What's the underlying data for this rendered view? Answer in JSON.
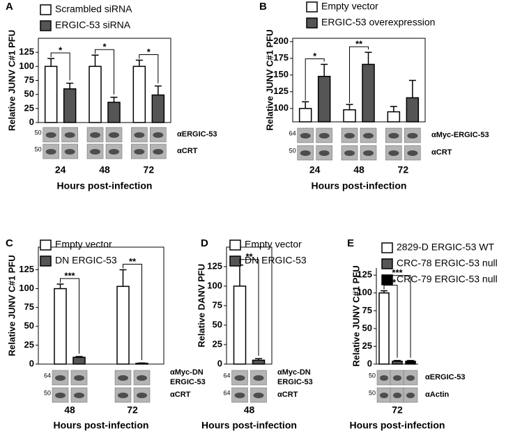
{
  "chart_data": [
    {
      "type": "bar",
      "panel": "A",
      "ylabel": "Relative JUNV C#1 PFU",
      "xlabel": "Hours post-infection",
      "categories": [
        "24",
        "48",
        "72"
      ],
      "series": [
        {
          "name": "Scrambled siRNA",
          "color": "#ffffff",
          "values": [
            100,
            100,
            100
          ],
          "errors": [
            14,
            20,
            11
          ]
        },
        {
          "name": "ERGIC-53 siRNA",
          "color": "#555555",
          "values": [
            60,
            36,
            49
          ],
          "errors": [
            10,
            9,
            16
          ]
        }
      ],
      "ylim": [
        0,
        150
      ],
      "yticks": [
        0,
        25,
        50,
        75,
        100,
        125
      ],
      "frame": true,
      "significance": [
        {
          "category": "24",
          "compare": "ERGIC-53 siRNA",
          "label": "*"
        },
        {
          "category": "48",
          "compare": "ERGIC-53 siRNA",
          "label": "*"
        },
        {
          "category": "72",
          "compare": "ERGIC-53 siRNA",
          "label": "*"
        }
      ],
      "blots": [
        {
          "label": [
            "αERGIC-53"
          ],
          "marker": "50"
        },
        {
          "label": [
            "αCRT"
          ],
          "marker": "50"
        }
      ]
    },
    {
      "type": "bar",
      "panel": "B",
      "ylabel": "Relative JUNV C#1 PFU",
      "xlabel": "Hours post-infection",
      "categories": [
        "24",
        "48",
        "72"
      ],
      "series": [
        {
          "name": "Empty  vector",
          "color": "#ffffff",
          "values": [
            100,
            98,
            95
          ],
          "errors": [
            10,
            8,
            8
          ]
        },
        {
          "name": "ERGIC-53 overexpression",
          "color": "#555555",
          "values": [
            148,
            166,
            116
          ],
          "errors": [
            18,
            18,
            26
          ]
        }
      ],
      "ylim": [
        80,
        205
      ],
      "yticks": [
        100,
        125,
        150,
        175,
        200
      ],
      "frame": true,
      "significance": [
        {
          "category": "24",
          "compare": "ERGIC-53 overexpression",
          "label": "*"
        },
        {
          "category": "48",
          "compare": "ERGIC-53 overexpression",
          "label": "**"
        }
      ],
      "blots": [
        {
          "label": [
            "αMyc-ERGIC-53"
          ],
          "marker": "64"
        },
        {
          "label": [
            "αCRT"
          ],
          "marker": "50"
        }
      ]
    },
    {
      "type": "bar",
      "panel": "C",
      "ylabel": "Relative JUNV C#1 PFU",
      "xlabel": "Hours post-infection",
      "categories": [
        "48",
        "72"
      ],
      "series": [
        {
          "name": "Empty  vector",
          "color": "#ffffff",
          "values": [
            100,
            103
          ],
          "errors": [
            6,
            22
          ]
        },
        {
          "name": "DN ERGIC-53",
          "color": "#555555",
          "values": [
            9,
            1
          ],
          "errors": [
            1,
            0.5
          ]
        }
      ],
      "ylim": [
        0,
        155
      ],
      "yticks": [
        0,
        25,
        50,
        75,
        100,
        125
      ],
      "frame": true,
      "significance": [
        {
          "category": "48",
          "compare": "DN ERGIC-53",
          "label": "***"
        },
        {
          "category": "72",
          "compare": "DN ERGIC-53",
          "label": "**"
        }
      ],
      "blots": [
        {
          "label": [
            "αMyc-DN",
            "ERGIC-53"
          ],
          "marker": "64"
        },
        {
          "label": [
            "αCRT"
          ],
          "marker": "50"
        }
      ]
    },
    {
      "type": "bar",
      "panel": "D",
      "ylabel": "Relative DANV PFU",
      "xlabel": "Hours post-infection",
      "categories": [
        "48"
      ],
      "series": [
        {
          "name": "Empty  vector",
          "color": "#ffffff",
          "values": [
            100
          ],
          "errors": [
            27
          ]
        },
        {
          "name": "DN ERGIC-53",
          "color": "#555555",
          "values": [
            5
          ],
          "errors": [
            2
          ]
        }
      ],
      "ylim": [
        0,
        150
      ],
      "yticks": [
        0,
        25,
        50,
        75,
        100,
        125
      ],
      "frame": true,
      "significance": [
        {
          "category": "48",
          "compare": "DN ERGIC-53",
          "label": "**"
        }
      ],
      "blots": [
        {
          "label": [
            "αMyc-DN",
            "ERGIC-53"
          ],
          "marker": "64"
        },
        {
          "label": [
            "αCRT"
          ],
          "marker": "64"
        }
      ]
    },
    {
      "type": "bar",
      "panel": "E",
      "ylabel": "Relative JUNV C#1 PFU",
      "xlabel": "Hours post-infection",
      "categories": [
        "72"
      ],
      "series": [
        {
          "name": "2829-D ERGIC-53 WT",
          "color": "#ffffff",
          "values": [
            100
          ],
          "errors": [
            3
          ]
        },
        {
          "name": "CRC-78 ERGIC-53 null",
          "color": "#555555",
          "values": [
            4
          ],
          "errors": [
            1
          ]
        },
        {
          "name": "CRC-79 ERGIC-53 null",
          "color": "#000000",
          "values": [
            4
          ],
          "errors": [
            1
          ]
        }
      ],
      "ylim": [
        0,
        135
      ],
      "yticks": [
        0,
        25,
        50,
        75,
        100,
        125
      ],
      "frame": false,
      "significance": [
        {
          "category": "72",
          "compare": "CRC-78 ERGIC-53 null",
          "label": "***"
        },
        {
          "category": "72",
          "compare": "CRC-79 ERGIC-53 null",
          "label": "***"
        }
      ],
      "blots": [
        {
          "label": [
            "αERGIC-53"
          ],
          "marker": "50"
        },
        {
          "label": [
            "αActin"
          ],
          "marker": "50"
        }
      ]
    }
  ]
}
